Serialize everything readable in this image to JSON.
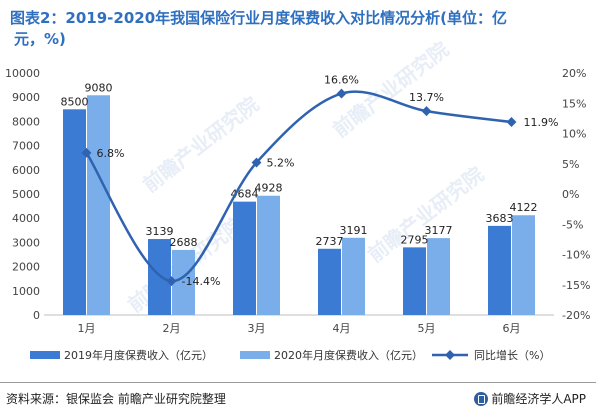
{
  "title_line1": "图表2：2019-2020年我国保险行业月度保费收入对比情况分析(单位：亿",
  "title_line2": "元，%)",
  "footer": {
    "source": "资料来源：银保监会 前瞻产业研究院整理",
    "brand": "前瞻经济学人APP"
  },
  "watermark": "前瞻产业研究院",
  "colors": {
    "series_2019": "#3b7bd4",
    "series_2020": "#7aaeea",
    "series_growth": "#2f63b0",
    "title": "#2f6fc0"
  },
  "chart_data": {
    "type": "bar",
    "categories": [
      "1月",
      "2月",
      "3月",
      "4月",
      "5月",
      "6月"
    ],
    "y_left": {
      "min": 0,
      "max": 10000,
      "step": 1000,
      "ticks": [
        "0",
        "1000",
        "2000",
        "3000",
        "4000",
        "5000",
        "6000",
        "7000",
        "8000",
        "9000",
        "10000"
      ]
    },
    "y_right": {
      "min": -20,
      "max": 20,
      "step": 5,
      "ticks": [
        "-20%",
        "-15%",
        "-10%",
        "-5%",
        "0%",
        "5%",
        "10%",
        "15%",
        "20%"
      ]
    },
    "series": [
      {
        "name": "2019年月度保费收入（亿元）",
        "type": "bar",
        "axis": "left",
        "values": [
          8500,
          3139,
          4684,
          2737,
          2795,
          3683
        ],
        "labels": [
          "8500",
          "3139",
          "4684",
          "2737",
          "2795",
          "3683"
        ]
      },
      {
        "name": "2020年月度保费收入（亿元）",
        "type": "bar",
        "axis": "left",
        "values": [
          9080,
          2688,
          4928,
          3191,
          3177,
          4122
        ],
        "labels": [
          "9080",
          "2688",
          "4928",
          "3191",
          "3177",
          "4122"
        ]
      },
      {
        "name": "同比增长（%）",
        "type": "line",
        "axis": "right",
        "smooth": true,
        "values": [
          6.8,
          -14.4,
          5.2,
          16.6,
          13.7,
          11.9
        ],
        "labels": [
          "6.8%",
          "-14.4%",
          "5.2%",
          "16.6%",
          "13.7%",
          "11.9%"
        ]
      }
    ],
    "legend_position": "bottom",
    "grid": false
  }
}
